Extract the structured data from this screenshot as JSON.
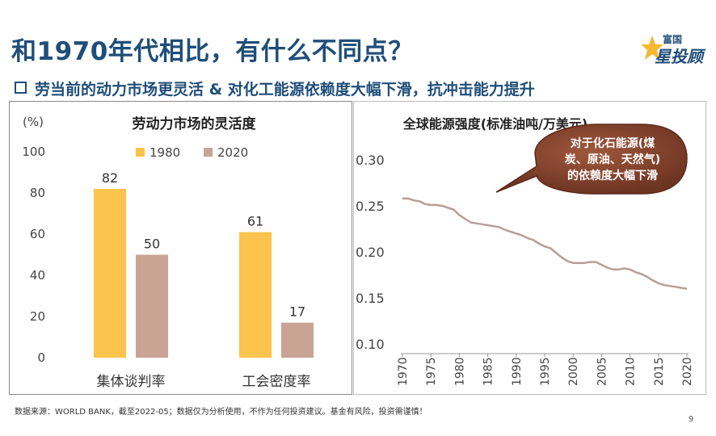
{
  "header": {
    "title": "和1970年代相比，有什么不同点？",
    "subtitle": "劳当前的动力市场更灵活 & 对化工能源依赖度大幅下滑，抗冲击能力提升",
    "logo_top": "富国",
    "logo_main": "星投顾"
  },
  "footer": {
    "source": "数据来源：WORLD BANK，截至2022-05；数据仅为分析使用，不作为任何投资建议。基金有风险，投资需谨慎！",
    "page_number": "9"
  },
  "colors": {
    "series_1980": "#fcc44c",
    "series_2020": "#c9a393",
    "line": "#b89e96",
    "callout": "#8b4a32",
    "title": "#1f4e79"
  },
  "chart_data": [
    {
      "type": "bar",
      "title": "劳动力市场的灵活度",
      "ylabel": "(%)",
      "ylim": [
        0,
        100
      ],
      "yticks": [
        0,
        20,
        40,
        60,
        80,
        100
      ],
      "categories": [
        "集体谈判率",
        "工会密度率"
      ],
      "series": [
        {
          "name": "1980",
          "values": [
            82,
            61
          ]
        },
        {
          "name": "2020",
          "values": [
            50,
            17
          ]
        }
      ],
      "legend": "top-center"
    },
    {
      "type": "line",
      "title": "全球能源强度(标准油吨/万美元)",
      "ylim": [
        0.1,
        0.3
      ],
      "yticks": [
        "0.10",
        "0.15",
        "0.20",
        "0.25",
        "0.30"
      ],
      "xticks": [
        "1970",
        "1975",
        "1980",
        "1985",
        "1990",
        "1995",
        "2000",
        "2005",
        "2010",
        "2015",
        "2020"
      ],
      "x": [
        1970,
        1971,
        1972,
        1973,
        1974,
        1975,
        1976,
        1977,
        1978,
        1979,
        1980,
        1981,
        1982,
        1983,
        1984,
        1985,
        1986,
        1987,
        1988,
        1989,
        1990,
        1991,
        1992,
        1993,
        1994,
        1995,
        1996,
        1997,
        1998,
        1999,
        2000,
        2001,
        2002,
        2003,
        2004,
        2005,
        2006,
        2007,
        2008,
        2009,
        2010,
        2011,
        2012,
        2013,
        2014,
        2015,
        2016,
        2017,
        2018,
        2019,
        2020
      ],
      "y": [
        0.258,
        0.258,
        0.256,
        0.255,
        0.252,
        0.251,
        0.251,
        0.25,
        0.248,
        0.246,
        0.24,
        0.236,
        0.232,
        0.231,
        0.23,
        0.229,
        0.228,
        0.227,
        0.224,
        0.222,
        0.22,
        0.218,
        0.215,
        0.213,
        0.209,
        0.206,
        0.204,
        0.199,
        0.194,
        0.19,
        0.188,
        0.188,
        0.188,
        0.189,
        0.189,
        0.186,
        0.183,
        0.181,
        0.181,
        0.182,
        0.181,
        0.178,
        0.176,
        0.173,
        0.169,
        0.166,
        0.164,
        0.163,
        0.162,
        0.161,
        0.16
      ],
      "annotation": "对于化石能源(煤炭、原油、天然气)的依赖度大幅下滑",
      "annotation_lines": [
        "对于化石能源(煤",
        "炭、原油、天然气)",
        "的依赖度大幅下滑"
      ]
    }
  ]
}
